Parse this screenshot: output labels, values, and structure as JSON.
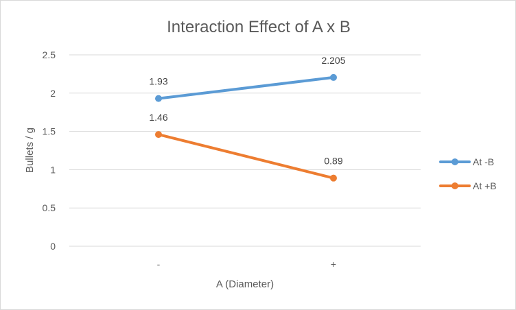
{
  "chart_data": {
    "type": "line",
    "title": "Interaction Effect of A x B",
    "xlabel": "A (Diameter)",
    "ylabel": "Bullets / g",
    "categories": [
      "-",
      "+"
    ],
    "ylim": [
      0,
      2.5
    ],
    "yticks": [
      "0",
      "0.5",
      "1",
      "1.5",
      "2",
      "2.5"
    ],
    "grid": true,
    "legend_position": "right",
    "series": [
      {
        "name": "At -B",
        "values": [
          1.93,
          2.205
        ],
        "labels": [
          "1.93",
          "2.205"
        ],
        "color": "#5b9bd5"
      },
      {
        "name": "At +B",
        "values": [
          1.46,
          0.89
        ],
        "labels": [
          "1.46",
          "0.89"
        ],
        "color": "#ed7d31"
      }
    ]
  }
}
